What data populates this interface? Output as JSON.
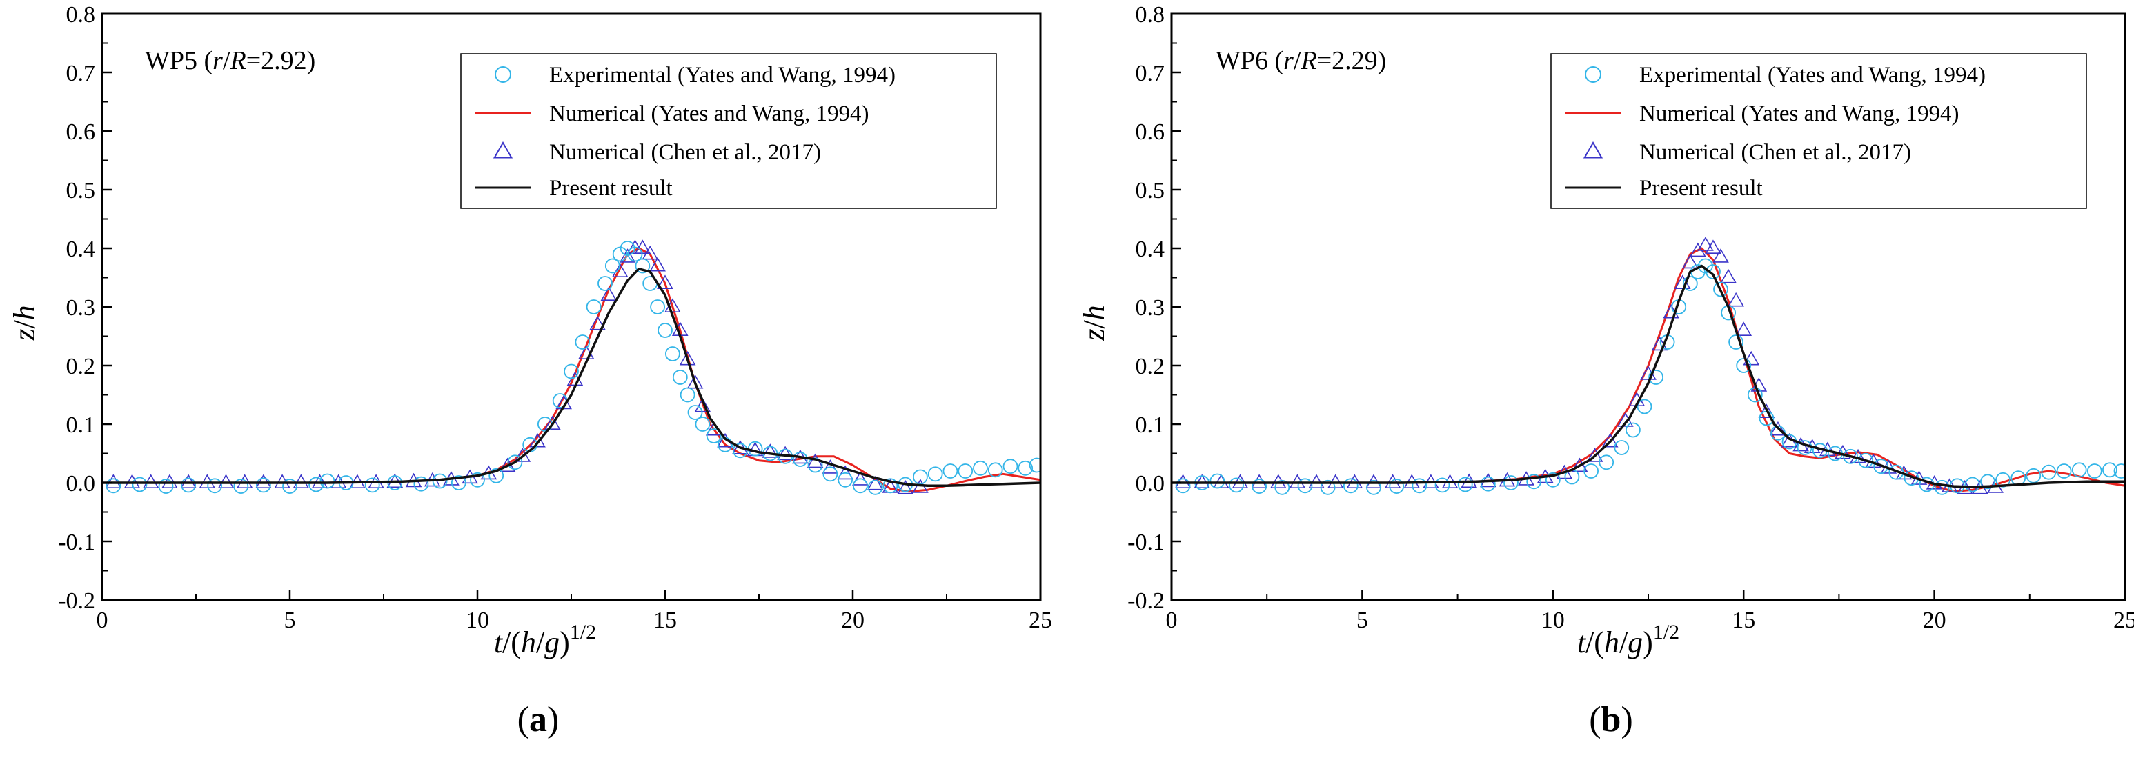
{
  "figure": {
    "panels": [
      {
        "caption_open": "(",
        "caption_letter": "a",
        "caption_close": ")"
      },
      {
        "caption_open": "(",
        "caption_letter": "b",
        "caption_close": ")"
      }
    ]
  },
  "chart_data": [
    {
      "type": "line",
      "panel": "a",
      "title": "WP5 (r/R=2.92)",
      "title_parts": {
        "prefix": "WP5 (",
        "r": "r",
        "slash": "/",
        "R": "R",
        "suffix": "=2.92)"
      },
      "xlabel": "t/(h/g)^1/2",
      "xlabel_parts": {
        "t": "t",
        "slash1": "/(",
        "h": "h",
        "slash2": "/",
        "g": "g",
        "close": ")",
        "exp": "1/2"
      },
      "ylabel": "z/h",
      "ylabel_parts": {
        "z": "z",
        "slash": "/",
        "h": "h"
      },
      "xlim": [
        0,
        25
      ],
      "ylim": [
        -0.2,
        0.8
      ],
      "xticks": [
        "0",
        "5",
        "10",
        "15",
        "20",
        "25"
      ],
      "yticks": [
        "-0.2",
        "-0.1",
        "0.0",
        "0.1",
        "0.2",
        "0.3",
        "0.4",
        "0.5",
        "0.6",
        "0.7",
        "0.8"
      ],
      "legend_position": "top-right",
      "colors": {
        "experimental": "#33b5e8",
        "yates_numerical": "#e8231f",
        "chen": "#3b35c9",
        "present": "#111111"
      },
      "series": [
        {
          "name": "Experimental (Yates and Wang, 1994)",
          "marker": "circle",
          "x": [
            0.3,
            1.0,
            1.7,
            2.3,
            3.0,
            3.7,
            4.3,
            5.0,
            5.7,
            6.0,
            6.5,
            7.2,
            7.8,
            8.5,
            9.0,
            9.5,
            10.0,
            10.5,
            11.0,
            11.4,
            11.8,
            12.2,
            12.5,
            12.8,
            13.1,
            13.4,
            13.6,
            13.8,
            14.0,
            14.2,
            14.4,
            14.6,
            14.8,
            15.0,
            15.2,
            15.4,
            15.6,
            15.8,
            16.0,
            16.3,
            16.6,
            17.0,
            17.4,
            17.8,
            18.2,
            18.6,
            19.0,
            19.4,
            19.8,
            20.2,
            20.6,
            21.0,
            21.4,
            21.8,
            22.2,
            22.6,
            23.0,
            23.4,
            23.8,
            24.2,
            24.6,
            24.9
          ],
          "y": [
            -0.005,
            -0.003,
            -0.006,
            -0.004,
            -0.005,
            -0.006,
            -0.004,
            -0.006,
            -0.003,
            0.003,
            0.0,
            -0.004,
            0.0,
            -0.002,
            0.003,
            0.0,
            0.005,
            0.012,
            0.035,
            0.065,
            0.1,
            0.14,
            0.19,
            0.24,
            0.3,
            0.34,
            0.37,
            0.39,
            0.4,
            0.39,
            0.37,
            0.34,
            0.3,
            0.26,
            0.22,
            0.18,
            0.15,
            0.12,
            0.1,
            0.08,
            0.065,
            0.055,
            0.058,
            0.05,
            0.045,
            0.04,
            0.03,
            0.015,
            0.005,
            -0.005,
            -0.008,
            -0.005,
            -0.003,
            0.01,
            0.015,
            0.02,
            0.02,
            0.025,
            0.022,
            0.028,
            0.025,
            0.03
          ]
        },
        {
          "name": "Numerical (Yates and Wang, 1994)",
          "line": "solid",
          "x": [
            0,
            2,
            4,
            6,
            8,
            9,
            10,
            10.5,
            11,
            11.5,
            12,
            12.5,
            13,
            13.5,
            14,
            14.3,
            14.6,
            15,
            15.4,
            15.8,
            16.2,
            16.6,
            17,
            17.5,
            18,
            18.5,
            19,
            19.5,
            20,
            20.5,
            21,
            21.5,
            22,
            22.5,
            23,
            23.5,
            24,
            24.5,
            25
          ],
          "y": [
            0,
            0,
            0,
            0,
            0.002,
            0.005,
            0.012,
            0.022,
            0.04,
            0.07,
            0.11,
            0.17,
            0.25,
            0.33,
            0.39,
            0.4,
            0.39,
            0.34,
            0.26,
            0.17,
            0.1,
            0.065,
            0.05,
            0.038,
            0.035,
            0.04,
            0.045,
            0.045,
            0.03,
            0.01,
            -0.01,
            -0.015,
            -0.012,
            -0.005,
            0.003,
            0.01,
            0.015,
            0.01,
            0.005
          ]
        },
        {
          "name": "Numerical (Chen et al., 2017)",
          "marker": "triangle",
          "x": [
            0.3,
            0.8,
            1.3,
            1.8,
            2.3,
            2.8,
            3.3,
            3.8,
            4.3,
            4.8,
            5.3,
            5.8,
            6.3,
            6.8,
            7.3,
            7.8,
            8.3,
            8.8,
            9.3,
            9.8,
            10.3,
            10.8,
            11.2,
            11.6,
            12.0,
            12.3,
            12.6,
            12.9,
            13.2,
            13.5,
            13.8,
            14.0,
            14.2,
            14.4,
            14.6,
            14.8,
            15.0,
            15.2,
            15.4,
            15.6,
            15.8,
            16.0,
            16.3,
            16.6,
            17.0,
            17.4,
            17.8,
            18.2,
            18.6,
            19.0,
            19.4,
            19.8,
            20.2,
            20.6,
            21.0,
            21.4,
            21.8
          ],
          "y": [
            0,
            0,
            0,
            0,
            0,
            0,
            0,
            0,
            0,
            0,
            0,
            0,
            0,
            0,
            0,
            0.001,
            0.002,
            0.003,
            0.005,
            0.008,
            0.015,
            0.028,
            0.045,
            0.07,
            0.1,
            0.135,
            0.175,
            0.22,
            0.27,
            0.32,
            0.36,
            0.385,
            0.4,
            0.4,
            0.39,
            0.37,
            0.34,
            0.3,
            0.26,
            0.21,
            0.17,
            0.13,
            0.09,
            0.07,
            0.058,
            0.055,
            0.052,
            0.048,
            0.042,
            0.035,
            0.025,
            0.015,
            0.005,
            -0.003,
            -0.008,
            -0.01,
            -0.008
          ]
        },
        {
          "name": "Present result",
          "line": "solid",
          "x": [
            0,
            2,
            4,
            6,
            8,
            9,
            10,
            10.5,
            11,
            11.5,
            12,
            12.5,
            13,
            13.5,
            14,
            14.3,
            14.6,
            15,
            15.4,
            15.8,
            16.2,
            16.6,
            17,
            17.5,
            18,
            18.5,
            19,
            19.5,
            20,
            20.5,
            21,
            21.5,
            22,
            22.5,
            23,
            23.5,
            24,
            24.5,
            25
          ],
          "y": [
            0,
            0,
            0,
            0,
            0.002,
            0.005,
            0.012,
            0.02,
            0.035,
            0.06,
            0.1,
            0.15,
            0.22,
            0.29,
            0.345,
            0.365,
            0.36,
            0.32,
            0.25,
            0.17,
            0.11,
            0.075,
            0.06,
            0.052,
            0.048,
            0.045,
            0.04,
            0.03,
            0.02,
            0.01,
            0.002,
            -0.003,
            -0.005,
            -0.005,
            -0.004,
            -0.003,
            -0.002,
            -0.001,
            0
          ]
        }
      ]
    },
    {
      "type": "line",
      "panel": "b",
      "title": "WP6 (r/R=2.29)",
      "title_parts": {
        "prefix": "WP6 (",
        "r": "r",
        "slash": "/",
        "R": "R",
        "suffix": "=2.29)"
      },
      "xlabel": "t/(h/g)^1/2",
      "xlabel_parts": {
        "t": "t",
        "slash1": "/(",
        "h": "h",
        "slash2": "/",
        "g": "g",
        "close": ")",
        "exp": "1/2"
      },
      "ylabel": "z/h",
      "ylabel_parts": {
        "z": "z",
        "slash": "/",
        "h": "h"
      },
      "xlim": [
        0,
        25
      ],
      "ylim": [
        -0.2,
        0.8
      ],
      "xticks": [
        "0",
        "5",
        "10",
        "15",
        "20",
        "25"
      ],
      "yticks": [
        "-0.2",
        "-0.1",
        "0.0",
        "0.1",
        "0.2",
        "0.3",
        "0.4",
        "0.5",
        "0.6",
        "0.7",
        "0.8"
      ],
      "legend_position": "top-right",
      "colors": {
        "experimental": "#33b5e8",
        "yates_numerical": "#e8231f",
        "chen": "#3b35c9",
        "present": "#111111"
      },
      "series": [
        {
          "name": "Experimental (Yates and Wang, 1994)",
          "marker": "circle",
          "x": [
            0.3,
            0.8,
            1.2,
            1.7,
            2.3,
            2.9,
            3.5,
            4.1,
            4.7,
            5.3,
            5.9,
            6.5,
            7.1,
            7.7,
            8.3,
            8.9,
            9.5,
            10.0,
            10.5,
            11.0,
            11.4,
            11.8,
            12.1,
            12.4,
            12.7,
            13.0,
            13.3,
            13.6,
            13.8,
            14.0,
            14.2,
            14.4,
            14.6,
            14.8,
            15.0,
            15.3,
            15.6,
            15.9,
            16.2,
            16.6,
            17.0,
            17.4,
            17.8,
            18.2,
            18.6,
            19.0,
            19.4,
            19.8,
            20.2,
            20.6,
            21.0,
            21.4,
            21.8,
            22.2,
            22.6,
            23.0,
            23.4,
            23.8,
            24.2,
            24.6,
            24.9
          ],
          "y": [
            -0.005,
            0.0,
            0.003,
            -0.004,
            -0.006,
            -0.008,
            -0.005,
            -0.008,
            -0.005,
            -0.008,
            -0.006,
            -0.005,
            -0.004,
            -0.003,
            -0.002,
            0.0,
            0.002,
            0.005,
            0.01,
            0.02,
            0.035,
            0.06,
            0.09,
            0.13,
            0.18,
            0.24,
            0.3,
            0.34,
            0.36,
            0.37,
            0.36,
            0.33,
            0.29,
            0.24,
            0.2,
            0.15,
            0.11,
            0.085,
            0.07,
            0.06,
            0.055,
            0.05,
            0.045,
            0.038,
            0.028,
            0.018,
            0.008,
            -0.003,
            -0.008,
            -0.005,
            -0.003,
            0.002,
            0.005,
            0.008,
            0.012,
            0.018,
            0.02,
            0.022,
            0.02,
            0.022,
            0.02
          ]
        },
        {
          "name": "Numerical (Yates and Wang, 1994)",
          "line": "solid",
          "x": [
            0,
            2,
            4,
            6,
            8,
            9,
            10,
            10.5,
            11,
            11.5,
            12,
            12.5,
            13,
            13.3,
            13.6,
            13.9,
            14.2,
            14.6,
            15,
            15.4,
            15.8,
            16.2,
            16.6,
            17,
            17.5,
            18,
            18.5,
            19,
            19.5,
            20,
            20.5,
            21,
            21.5,
            22,
            22.5,
            23,
            23.5,
            24,
            24.5,
            25
          ],
          "y": [
            0,
            0,
            0,
            0,
            0.002,
            0.006,
            0.015,
            0.028,
            0.048,
            0.08,
            0.13,
            0.2,
            0.29,
            0.35,
            0.39,
            0.4,
            0.38,
            0.31,
            0.22,
            0.13,
            0.075,
            0.05,
            0.045,
            0.042,
            0.048,
            0.052,
            0.048,
            0.03,
            0.01,
            -0.005,
            -0.015,
            -0.012,
            -0.005,
            0.005,
            0.015,
            0.02,
            0.015,
            0.008,
            0.0,
            -0.005
          ]
        },
        {
          "name": "Numerical (Chen et al., 2017)",
          "marker": "triangle",
          "x": [
            0.3,
            0.8,
            1.3,
            1.8,
            2.3,
            2.8,
            3.3,
            3.8,
            4.3,
            4.8,
            5.3,
            5.8,
            6.3,
            6.8,
            7.3,
            7.8,
            8.3,
            8.8,
            9.3,
            9.8,
            10.3,
            10.7,
            11.1,
            11.5,
            11.9,
            12.2,
            12.5,
            12.8,
            13.1,
            13.4,
            13.6,
            13.8,
            14.0,
            14.2,
            14.4,
            14.6,
            14.8,
            15.0,
            15.2,
            15.4,
            15.6,
            15.9,
            16.2,
            16.5,
            16.8,
            17.2,
            17.6,
            18.0,
            18.4,
            18.8,
            19.2,
            19.6,
            20.0,
            20.4,
            20.8,
            21.2,
            21.6
          ],
          "y": [
            0,
            0,
            0,
            0,
            0,
            0,
            0,
            0,
            0,
            0,
            0,
            0,
            0,
            0,
            0,
            0.001,
            0.002,
            0.003,
            0.005,
            0.009,
            0.016,
            0.028,
            0.045,
            0.07,
            0.105,
            0.14,
            0.185,
            0.235,
            0.29,
            0.34,
            0.375,
            0.395,
            0.405,
            0.4,
            0.385,
            0.35,
            0.31,
            0.26,
            0.21,
            0.165,
            0.12,
            0.09,
            0.07,
            0.063,
            0.06,
            0.055,
            0.05,
            0.043,
            0.035,
            0.025,
            0.015,
            0.006,
            -0.002,
            -0.007,
            -0.01,
            -0.01,
            -0.008
          ]
        },
        {
          "name": "Present result",
          "line": "solid",
          "x": [
            0,
            2,
            4,
            6,
            8,
            9,
            10,
            10.5,
            11,
            11.5,
            12,
            12.5,
            13,
            13.3,
            13.6,
            13.9,
            14.2,
            14.6,
            15,
            15.4,
            15.8,
            16.2,
            16.6,
            17,
            17.5,
            18,
            18.5,
            19,
            19.5,
            20,
            20.5,
            21,
            21.5,
            22,
            22.5,
            23,
            23.5,
            24,
            24.5,
            25
          ],
          "y": [
            0,
            0,
            0,
            0,
            0.002,
            0.005,
            0.012,
            0.022,
            0.04,
            0.07,
            0.11,
            0.17,
            0.25,
            0.31,
            0.36,
            0.37,
            0.355,
            0.3,
            0.22,
            0.15,
            0.1,
            0.075,
            0.065,
            0.058,
            0.05,
            0.042,
            0.032,
            0.02,
            0.008,
            -0.002,
            -0.006,
            -0.007,
            -0.006,
            -0.004,
            -0.002,
            0.0,
            0.001,
            0.002,
            0.002,
            0.002
          ]
        }
      ]
    }
  ]
}
